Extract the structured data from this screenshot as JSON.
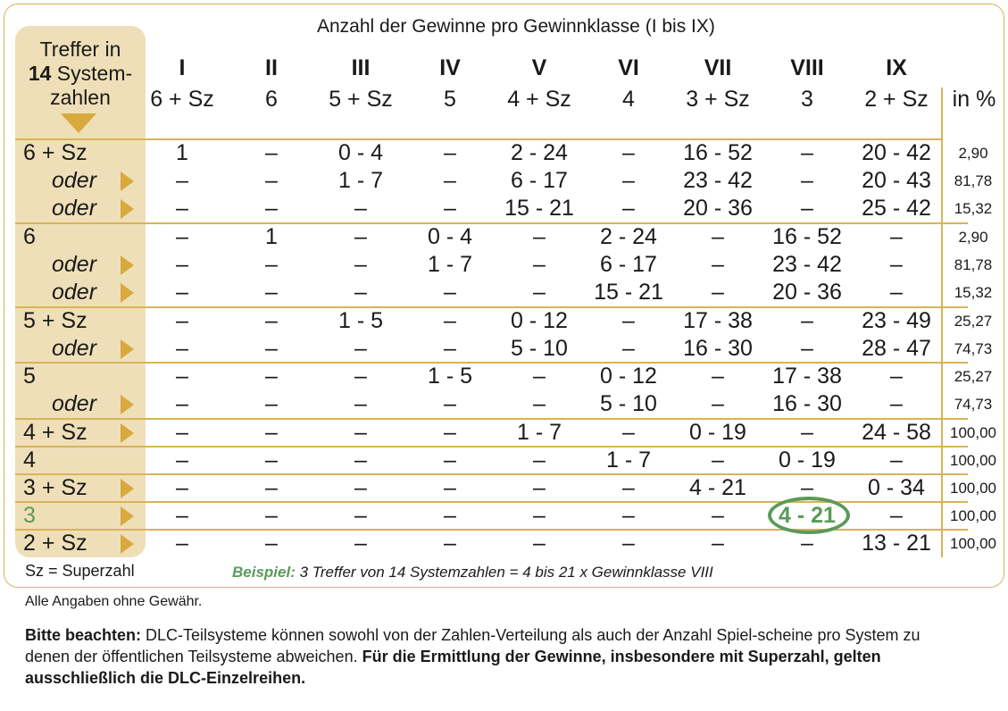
{
  "title": "Anzahl der Gewinne pro Gewinnklasse (I bis IX)",
  "side_header": {
    "line1": "Treffer in",
    "bold": "14",
    "line2": " System-",
    "line3": "zahlen"
  },
  "classes": [
    {
      "roman": "I",
      "sub": "6 + Sz"
    },
    {
      "roman": "II",
      "sub": "6"
    },
    {
      "roman": "III",
      "sub": "5 + Sz"
    },
    {
      "roman": "IV",
      "sub": "5"
    },
    {
      "roman": "V",
      "sub": "4 + Sz"
    },
    {
      "roman": "VI",
      "sub": "4"
    },
    {
      "roman": "VII",
      "sub": "3 + Sz"
    },
    {
      "roman": "VIII",
      "sub": "3"
    },
    {
      "roman": "IX",
      "sub": "2 + Sz"
    }
  ],
  "pct_header": "in %",
  "rows": [
    {
      "label": "6 + Sz",
      "oder": false,
      "cells": [
        "1",
        "–",
        "0 - 4",
        "–",
        "2 - 24",
        "–",
        "16 - 52",
        "–",
        "20 - 42"
      ],
      "pct": "2,90"
    },
    {
      "label": "oder",
      "oder": true,
      "cells": [
        "–",
        "–",
        "1 - 7",
        "–",
        "6 - 17",
        "–",
        "23 - 42",
        "–",
        "20 - 43"
      ],
      "pct": "81,78"
    },
    {
      "label": "oder",
      "oder": true,
      "cells": [
        "–",
        "–",
        "–",
        "–",
        "15 - 21",
        "–",
        "20 - 36",
        "–",
        "25 - 42"
      ],
      "pct": "15,32"
    },
    {
      "label": "6",
      "oder": false,
      "cells": [
        "–",
        "1",
        "–",
        "0 - 4",
        "–",
        "2 - 24",
        "–",
        "16 - 52",
        "–"
      ],
      "pct": "2,90"
    },
    {
      "label": "oder",
      "oder": true,
      "cells": [
        "–",
        "–",
        "–",
        "1 - 7",
        "–",
        "6 - 17",
        "–",
        "23 - 42",
        "–"
      ],
      "pct": "81,78"
    },
    {
      "label": "oder",
      "oder": true,
      "cells": [
        "–",
        "–",
        "–",
        "–",
        "–",
        "15 - 21",
        "–",
        "20 - 36",
        "–"
      ],
      "pct": "15,32"
    },
    {
      "label": "5 + Sz",
      "oder": false,
      "cells": [
        "–",
        "–",
        "1 - 5",
        "–",
        "0 - 12",
        "–",
        "17 - 38",
        "–",
        "23 - 49"
      ],
      "pct": "25,27"
    },
    {
      "label": "oder",
      "oder": true,
      "cells": [
        "–",
        "–",
        "–",
        "–",
        "5 - 10",
        "–",
        "16 - 30",
        "–",
        "28 - 47"
      ],
      "pct": "74,73"
    },
    {
      "label": "5",
      "oder": false,
      "cells": [
        "–",
        "–",
        "–",
        "1 - 5",
        "–",
        "0 - 12",
        "–",
        "17 - 38",
        "–"
      ],
      "pct": "25,27"
    },
    {
      "label": "oder",
      "oder": true,
      "cells": [
        "–",
        "–",
        "–",
        "–",
        "–",
        "5 - 10",
        "–",
        "16 - 30",
        "–"
      ],
      "pct": "74,73"
    },
    {
      "label": "4 + Sz",
      "oder": false,
      "cells": [
        "–",
        "–",
        "–",
        "–",
        "1 - 7",
        "–",
        "0 - 19",
        "–",
        "24 - 58"
      ],
      "pct": "100,00"
    },
    {
      "label": "4",
      "oder": false,
      "cells": [
        "–",
        "–",
        "–",
        "–",
        "–",
        "1 - 7",
        "–",
        "0 - 19",
        "–"
      ],
      "pct": "100,00"
    },
    {
      "label": "3 + Sz",
      "oder": false,
      "cells": [
        "–",
        "–",
        "–",
        "–",
        "–",
        "–",
        "4 - 21",
        "–",
        "0 - 34"
      ],
      "pct": "100,00"
    },
    {
      "label": "3",
      "oder": false,
      "cells": [
        "–",
        "–",
        "–",
        "–",
        "–",
        "–",
        "–",
        "4 - 21",
        "–"
      ],
      "pct": "100,00"
    },
    {
      "label": "2 + Sz",
      "oder": false,
      "cells": [
        "–",
        "–",
        "–",
        "–",
        "–",
        "–",
        "–",
        "–",
        "13 - 21"
      ],
      "pct": "100,00"
    }
  ],
  "legend": "Sz = Superzahl",
  "example": {
    "label": "Beispiel:",
    "text": " 3 Treffer von 14 Systemzahlen = 4 bis 21 x Gewinnklasse VIII"
  },
  "disclaimer": "Alle Angaben ohne Gewähr.",
  "note": {
    "bold1": "Bitte beachten:",
    "text": " DLC-Teilsysteme können sowohl von der Zahlen-Verteilung als auch der Anzahl Spiel-scheine pro System zu denen der öffentlichen Teilsysteme abweichen. ",
    "bold2": "Für die Ermittlung der Gewinne, insbesondere mit Superzahl, gelten ausschließlich die DLC-Einzelreihen."
  },
  "colors": {
    "gold": "#d8b35a",
    "beige": "#efdfb8",
    "green": "#5a9a5a"
  }
}
